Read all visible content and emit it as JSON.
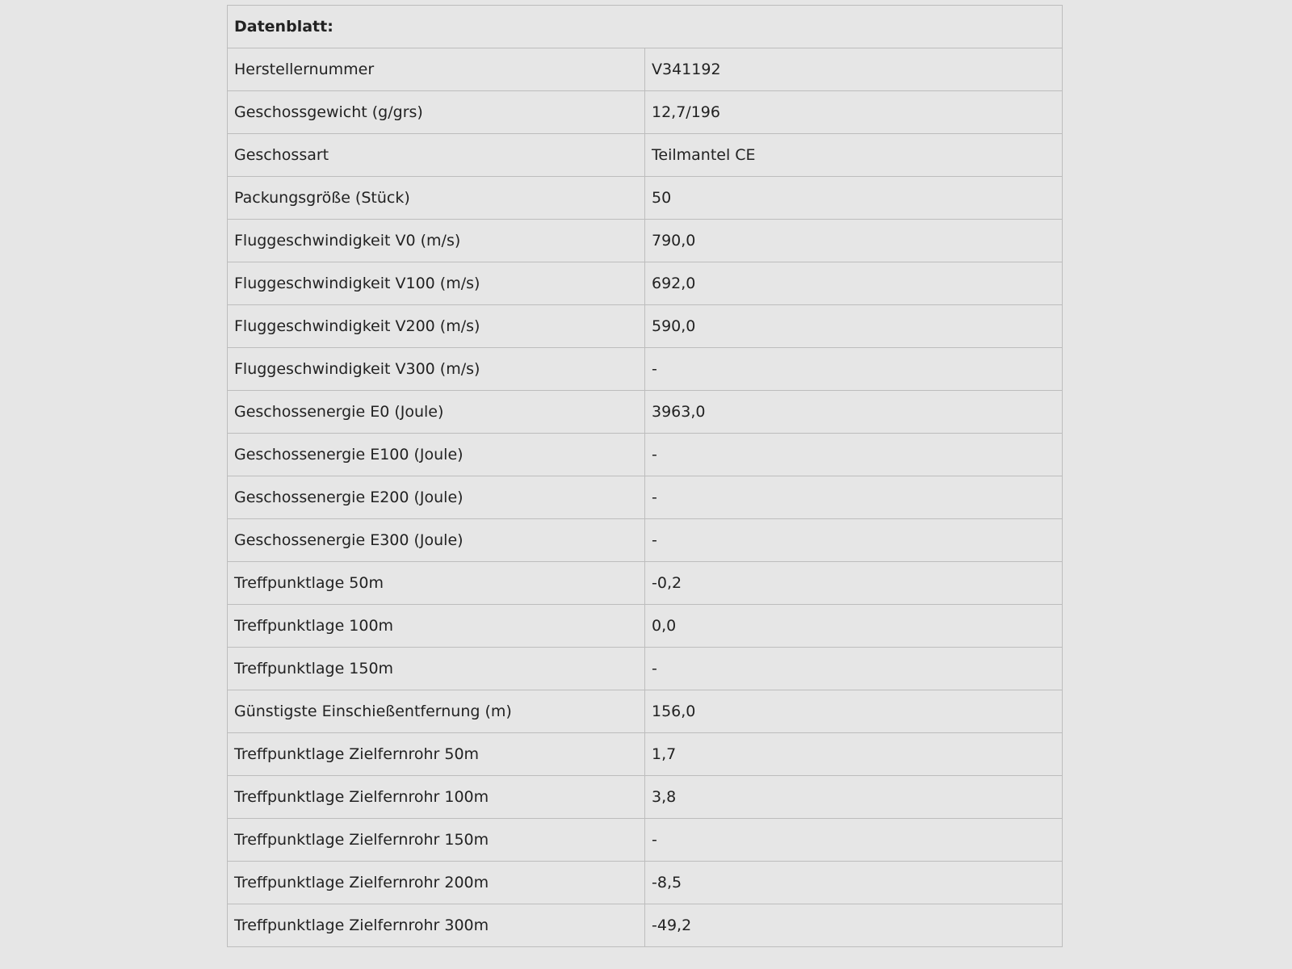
{
  "title": "Datenblatt:",
  "rows": [
    {
      "label": "Herstellernummer",
      "value": "V341192"
    },
    {
      "label": "Geschossgewicht (g/grs)",
      "value": "12,7/196"
    },
    {
      "label": "Geschossart",
      "value": "Teilmantel CE"
    },
    {
      "label": "Packungsgröße (Stück)",
      "value": "50"
    },
    {
      "label": "Fluggeschwindigkeit V0 (m/s)",
      "value": "790,0"
    },
    {
      "label": "Fluggeschwindigkeit V100 (m/s)",
      "value": "692,0"
    },
    {
      "label": "Fluggeschwindigkeit V200 (m/s)",
      "value": "590,0"
    },
    {
      "label": "Fluggeschwindigkeit V300 (m/s)",
      "value": "-"
    },
    {
      "label": "Geschossenergie E0 (Joule)",
      "value": "3963,0"
    },
    {
      "label": "Geschossenergie E100 (Joule)",
      "value": "-"
    },
    {
      "label": "Geschossenergie E200 (Joule)",
      "value": "-"
    },
    {
      "label": "Geschossenergie E300 (Joule)",
      "value": "-"
    },
    {
      "label": "Treffpunktlage 50m",
      "value": "-0,2"
    },
    {
      "label": "Treffpunktlage 100m",
      "value": "0,0"
    },
    {
      "label": "Treffpunktlage 150m",
      "value": "-"
    },
    {
      "label": "Günstigste Einschießentfernung (m)",
      "value": "156,0"
    },
    {
      "label": "Treffpunktlage Zielfernrohr 50m",
      "value": "1,7"
    },
    {
      "label": "Treffpunktlage Zielfernrohr 100m",
      "value": "3,8"
    },
    {
      "label": "Treffpunktlage Zielfernrohr 150m",
      "value": "-"
    },
    {
      "label": "Treffpunktlage Zielfernrohr 200m",
      "value": "-8,5"
    },
    {
      "label": "Treffpunktlage Zielfernrohr 300m",
      "value": "-49,2"
    }
  ]
}
